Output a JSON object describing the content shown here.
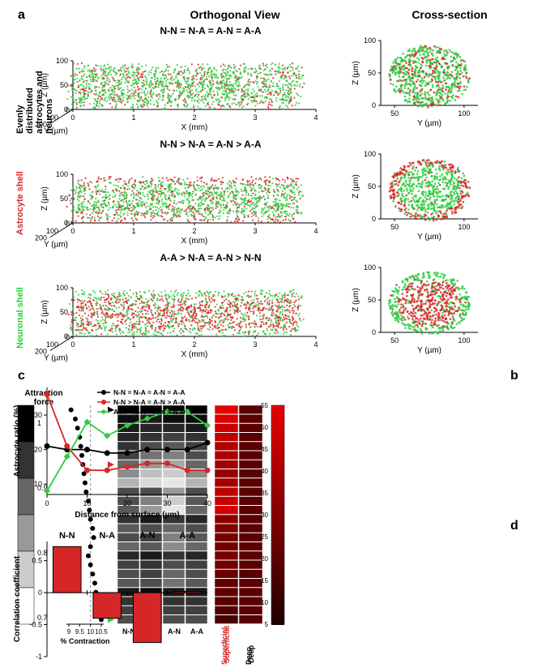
{
  "panel_a": {
    "label": "a",
    "col_headers": [
      "Orthogonal View",
      "Cross-section"
    ],
    "rows": [
      {
        "side_label": "Evenly distributed astrocytes and neurons",
        "side_color": "#000000",
        "condition": "N-N = N-A = A-N = A-A",
        "neuron_color": "#2ecc40",
        "astro_color": "#d62728",
        "astro_fraction_core": 0.25,
        "astro_fraction_shell": 0.25
      },
      {
        "side_label": "Astrocyte shell",
        "side_color": "#d62728",
        "condition": "N-N > N-A = A-N > A-A",
        "neuron_color": "#2ecc40",
        "astro_color": "#d62728",
        "astro_fraction_core": 0.05,
        "astro_fraction_shell": 0.8
      },
      {
        "side_label": "Neuronal shell",
        "side_color": "#2ecc40",
        "condition": "A-A > N-A = A-N > N-N",
        "neuron_color": "#2ecc40",
        "astro_color": "#d62728",
        "astro_fraction_core": 0.8,
        "astro_fraction_shell": 0.05
      }
    ],
    "ortho_axes": {
      "x_label": "X (mm)",
      "x_ticks": [
        0,
        1,
        2,
        3,
        4
      ],
      "y_label": "Y (µm)",
      "y_ticks": [
        0,
        100,
        200
      ],
      "z_label": "Z (µm)",
      "z_ticks": [
        0,
        50,
        100
      ]
    },
    "cross_axes": {
      "x_label": "Y (µm)",
      "x_ticks": [
        50,
        100
      ],
      "y_label": "Z (µm)",
      "y_ticks": [
        0,
        50,
        100
      ]
    }
  },
  "panel_b": {
    "label": "b",
    "x_label": "Distance from surface (µm)",
    "y_label": "Astrocyte ratio (%)",
    "x_ticks": [
      0,
      10,
      20,
      30,
      40
    ],
    "y_ticks": [
      10,
      20,
      30
    ],
    "xlim": [
      0,
      40
    ],
    "ylim": [
      7,
      38
    ],
    "series": [
      {
        "name": "N-N = N-A = A-N = A-A",
        "color": "#000000",
        "marker": "circle",
        "x": [
          0,
          5,
          10,
          15,
          20,
          25,
          30,
          35,
          40
        ],
        "y": [
          21,
          20,
          20,
          19,
          19,
          20,
          20,
          20,
          22
        ]
      },
      {
        "name": "N-N > N-A = A-N > A-A",
        "color": "#d62728",
        "marker": "circle",
        "x": [
          0,
          5,
          10,
          15,
          20,
          25,
          30,
          35,
          40
        ],
        "y": [
          36,
          21,
          14,
          14,
          15,
          16,
          16,
          14,
          14
        ]
      },
      {
        "name": "A-A > N-A = A-N > N-N",
        "color": "#2ecc40",
        "marker": "diamond",
        "x": [
          0,
          5,
          10,
          15,
          20,
          25,
          30,
          35,
          40
        ],
        "y": [
          8,
          18,
          28,
          24,
          27,
          29,
          31,
          31,
          27
        ]
      }
    ]
  },
  "panel_c": {
    "label": "c",
    "attraction_label": "Attraction force",
    "attraction_ticks": [
      "1",
      "0.9",
      "0.8",
      "0.7"
    ],
    "attraction_colors": [
      "#000000",
      "#333333",
      "#666666",
      "#999999",
      "#cccccc",
      "#ffffff"
    ],
    "contraction_label": "% Contraction",
    "contraction_ticks": [
      "9",
      "9.5",
      "10",
      "10.5"
    ],
    "contraction_dash_x": 10,
    "contraction_values": [
      9.1,
      9.3,
      9.4,
      9.5,
      9.55,
      9.6,
      9.65,
      9.7,
      9.75,
      9.8,
      9.9,
      9.95,
      10.0,
      10.1,
      10.15,
      10.0,
      9.9,
      10.0,
      10.1,
      10.2,
      10.25,
      10.35,
      10.45,
      10.5
    ],
    "heatmap_cols": [
      "N-N",
      "N-A",
      "A-N",
      "A-A"
    ],
    "heatmap_gray": [
      [
        0,
        0,
        0,
        0
      ],
      [
        0.05,
        0.1,
        0.05,
        0.05
      ],
      [
        0.1,
        0.15,
        0.15,
        0.1
      ],
      [
        0.15,
        0.2,
        0.25,
        0.2
      ],
      [
        0.2,
        0.3,
        0.35,
        0.25
      ],
      [
        0.25,
        0.45,
        0.5,
        0.3
      ],
      [
        0.4,
        0.6,
        0.65,
        0.4
      ],
      [
        0.55,
        0.75,
        0.8,
        0.55
      ],
      [
        0.7,
        0.85,
        0.9,
        0.7
      ],
      [
        0.3,
        0.3,
        0.6,
        0.3
      ],
      [
        0.3,
        0.5,
        0.8,
        0.35
      ],
      [
        0.35,
        0.6,
        0.9,
        0.4
      ],
      [
        0.2,
        0.1,
        0.2,
        0.15
      ],
      [
        0.35,
        0.3,
        0.4,
        0.3
      ],
      [
        0.3,
        0.25,
        0.5,
        0.35
      ],
      [
        0.4,
        0.35,
        0.55,
        0.4
      ],
      [
        0.15,
        0.1,
        0.2,
        0.15
      ],
      [
        0.25,
        0.2,
        0.3,
        0.25
      ],
      [
        0.3,
        0.25,
        0.4,
        0.3
      ],
      [
        0.35,
        0.3,
        0.45,
        0.35
      ],
      [
        0.1,
        0.05,
        0.1,
        0.1
      ],
      [
        0.2,
        0.15,
        0.2,
        0.2
      ],
      [
        0.25,
        0.2,
        0.25,
        0.25
      ],
      [
        0.3,
        0.25,
        0.3,
        0.3
      ]
    ],
    "astro_ratio_label": "Astrocyte ratio (%)",
    "astro_ticks": [
      5,
      10,
      15,
      20,
      25,
      30,
      35,
      40,
      45,
      50,
      55
    ],
    "astro_cols": [
      "Superficial",
      "Deep"
    ],
    "astro_col_colors": [
      "#d62728",
      "#000000"
    ],
    "heatmap_red": [
      [
        55,
        20
      ],
      [
        52,
        20
      ],
      [
        48,
        20
      ],
      [
        45,
        20
      ],
      [
        42,
        20
      ],
      [
        40,
        20
      ],
      [
        38,
        20
      ],
      [
        35,
        20
      ],
      [
        38,
        20
      ],
      [
        45,
        20
      ],
      [
        48,
        20
      ],
      [
        50,
        20
      ],
      [
        32,
        20
      ],
      [
        30,
        20
      ],
      [
        28,
        20
      ],
      [
        26,
        20
      ],
      [
        28,
        20
      ],
      [
        26,
        20
      ],
      [
        24,
        20
      ],
      [
        22,
        20
      ],
      [
        22,
        20
      ],
      [
        20,
        20
      ],
      [
        18,
        20
      ],
      [
        16,
        20
      ]
    ],
    "arrows": [
      {
        "row": 0,
        "color": "#000000"
      },
      {
        "row": 6,
        "color": "#d62728"
      },
      {
        "row": 23,
        "color": "#2ecc40"
      }
    ]
  },
  "panel_d": {
    "label": "d",
    "y_label": "Correlation coefficient",
    "y_ticks": [
      -1,
      -0.5,
      0,
      0.5
    ],
    "categories": [
      "N-N",
      "N-A",
      "A-N",
      "A-A"
    ],
    "values": [
      0.72,
      -0.4,
      -0.78,
      0.02
    ],
    "bar_color": "#d62728",
    "border": "#000000"
  }
}
